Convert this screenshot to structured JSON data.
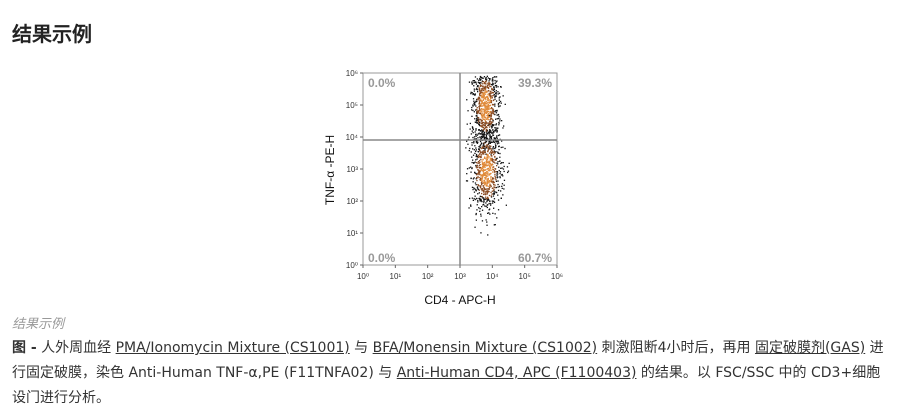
{
  "heading": "结果示例",
  "figure": {
    "y_axis_label": "TNF-α -PE-H",
    "x_axis_label": "CD4 - APC-H",
    "y_ticks": [
      "10⁰",
      "10¹",
      "10²",
      "10³",
      "10⁴",
      "10⁵",
      "10⁶"
    ],
    "x_ticks": [
      "10⁰",
      "10¹",
      "10²",
      "10³",
      "10⁴",
      "10⁵",
      "10⁶"
    ],
    "quadrants": {
      "upper_left": "0.0%",
      "upper_right": "39.3%",
      "lower_left": "0.0%",
      "lower_right": "60.7%"
    }
  },
  "caption": "结果示例",
  "paragraph": [
    {
      "text": "图 -",
      "style": "bold"
    },
    {
      "text": " 人外周血经 "
    },
    {
      "text": "PMA/Ionomycin Mixture (CS1001)",
      "style": "link"
    },
    {
      "text": " 与 "
    },
    {
      "text": "BFA/Monensin Mixture (CS1002)",
      "style": "link"
    },
    {
      "text": " 刺激阻断4小时后，再用 "
    },
    {
      "text": "固定破膜剂(GAS)",
      "style": "link"
    },
    {
      "text": " 进行固定破膜，染色 Anti-Human TNF-α,PE (F11TNFA02) 与 "
    },
    {
      "text": "Anti-Human CD4, APC (F1100403)",
      "style": "link"
    },
    {
      "text": " 的结果。以 FSC/SSC 中的 CD3+细胞设门进行分析。"
    }
  ]
}
